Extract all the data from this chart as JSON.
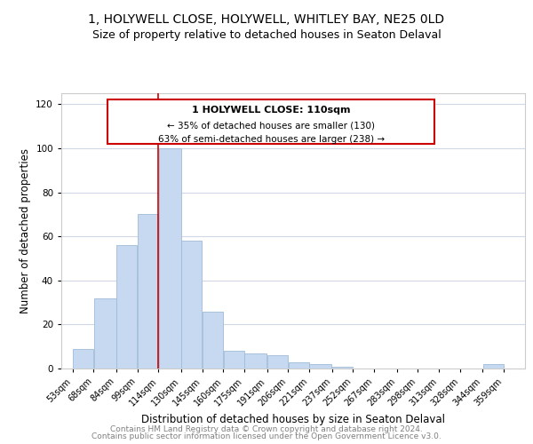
{
  "title": "1, HOLYWELL CLOSE, HOLYWELL, WHITLEY BAY, NE25 0LD",
  "subtitle": "Size of property relative to detached houses in Seaton Delaval",
  "xlabel": "Distribution of detached houses by size in Seaton Delaval",
  "ylabel": "Number of detached properties",
  "footer_line1": "Contains HM Land Registry data © Crown copyright and database right 2024.",
  "footer_line2": "Contains public sector information licensed under the Open Government Licence v3.0.",
  "annotation_line1": "1 HOLYWELL CLOSE: 110sqm",
  "annotation_line2": "← 35% of detached houses are smaller (130)",
  "annotation_line3": "63% of semi-detached houses are larger (238) →",
  "bar_left_edges": [
    53,
    68,
    84,
    99,
    114,
    130,
    145,
    160,
    175,
    191,
    206,
    221,
    237,
    252,
    267,
    283,
    298,
    313,
    328,
    344
  ],
  "bar_heights": [
    9,
    32,
    56,
    70,
    100,
    58,
    26,
    8,
    7,
    6,
    3,
    2,
    1,
    0,
    0,
    0,
    0,
    0,
    0,
    2
  ],
  "bar_widths": [
    15,
    16,
    15,
    15,
    16,
    15,
    15,
    15,
    16,
    15,
    15,
    16,
    15,
    15,
    16,
    15,
    15,
    15,
    16,
    15
  ],
  "tick_labels": [
    "53sqm",
    "68sqm",
    "84sqm",
    "99sqm",
    "114sqm",
    "130sqm",
    "145sqm",
    "160sqm",
    "175sqm",
    "191sqm",
    "206sqm",
    "221sqm",
    "237sqm",
    "252sqm",
    "267sqm",
    "283sqm",
    "298sqm",
    "313sqm",
    "328sqm",
    "344sqm",
    "359sqm"
  ],
  "tick_positions": [
    53,
    68,
    84,
    99,
    114,
    130,
    145,
    160,
    175,
    191,
    206,
    221,
    237,
    252,
    267,
    283,
    298,
    313,
    328,
    344,
    359
  ],
  "bar_color": "#c6d9f0",
  "bar_edge_color": "#a0bcd8",
  "grid_color": "#d0d8e8",
  "vline_x": 114,
  "vline_color": "#cc0000",
  "annotation_box_color": "#cc0000",
  "ylim": [
    0,
    125
  ],
  "xlim": [
    45,
    374
  ],
  "title_fontsize": 10,
  "subtitle_fontsize": 9,
  "axis_label_fontsize": 8.5,
  "tick_fontsize": 7,
  "annotation_fontsize": 8,
  "footer_fontsize": 6.5
}
